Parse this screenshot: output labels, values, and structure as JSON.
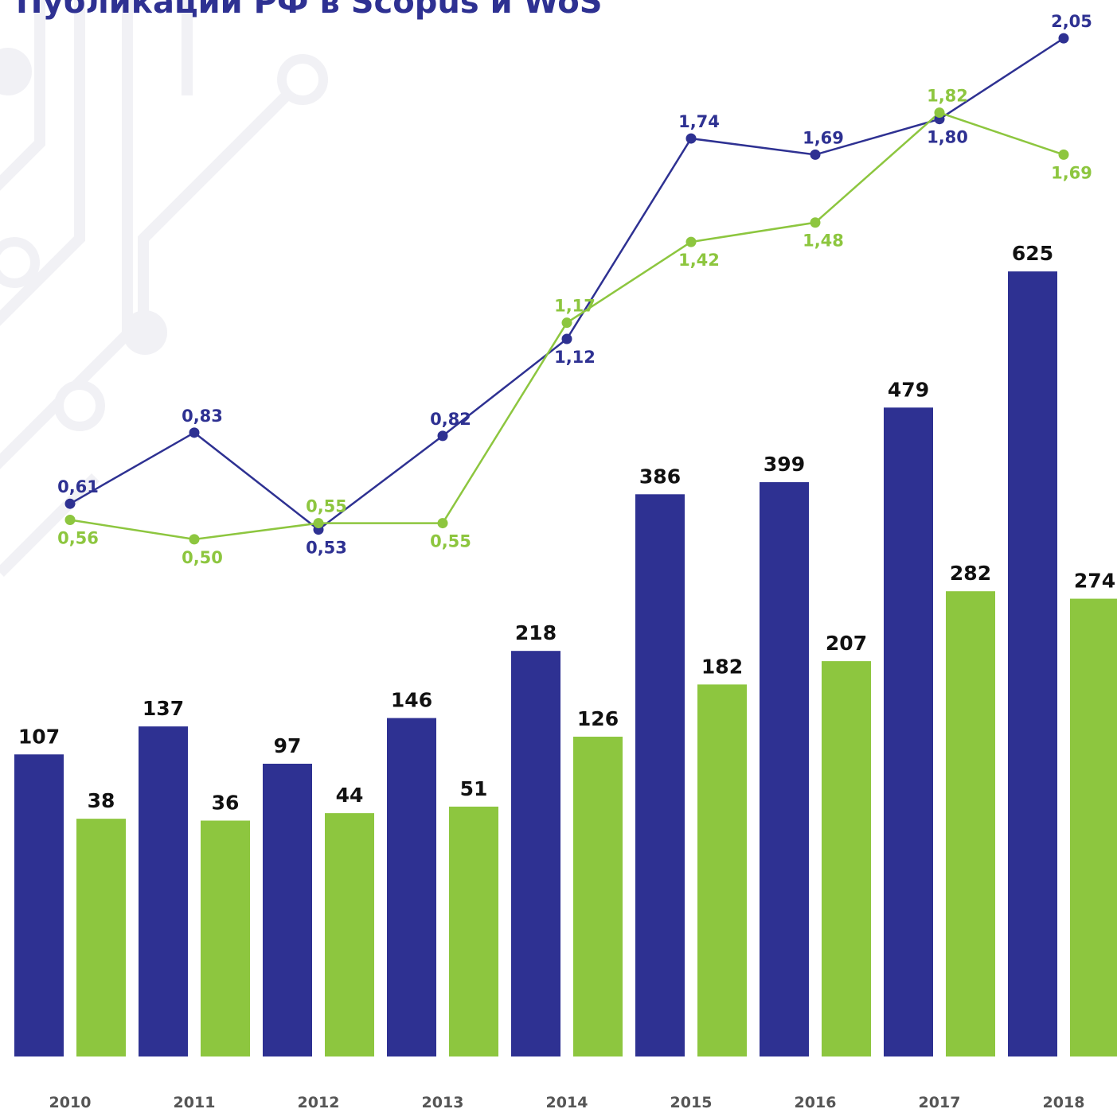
{
  "chart_data": {
    "type": "bar-line",
    "title": "Публикации РФ в Scopus и WoS",
    "categories": [
      "2010",
      "2011",
      "2012",
      "2013",
      "2014",
      "2015",
      "2016",
      "2017",
      "2018"
    ],
    "ylim": [
      -217,
      882
    ],
    "y2lim": [
      -1.1,
      2.07
    ],
    "series": [
      {
        "type": "bar",
        "color": "#2e3192",
        "values": [
          107,
          137,
          97,
          146,
          218,
          386,
          399,
          479,
          625
        ]
      },
      {
        "type": "bar",
        "color": "#8dc63f",
        "values": [
          38,
          36,
          44,
          51,
          126,
          182,
          207,
          282,
          274
        ]
      },
      {
        "type": "line",
        "axis": "y2",
        "color": "#2e3192",
        "values": [
          0.61,
          0.83,
          0.53,
          0.82,
          1.12,
          1.74,
          1.69,
          1.8,
          2.05
        ],
        "value_labels": [
          "0,61",
          "0,83",
          "0,53",
          "0,82",
          "1,12",
          "1,74",
          "1,69",
          "1,80",
          "2,05"
        ]
      },
      {
        "type": "line",
        "axis": "y2",
        "color": "#8dc63f",
        "values": [
          0.56,
          0.5,
          0.55,
          0.55,
          1.17,
          1.42,
          1.48,
          1.82,
          1.69
        ],
        "value_labels": [
          "0,56",
          "0,50",
          "0,55",
          "0,55",
          "1,17",
          "1,42",
          "1,48",
          "1,82",
          "1,69"
        ]
      }
    ]
  }
}
